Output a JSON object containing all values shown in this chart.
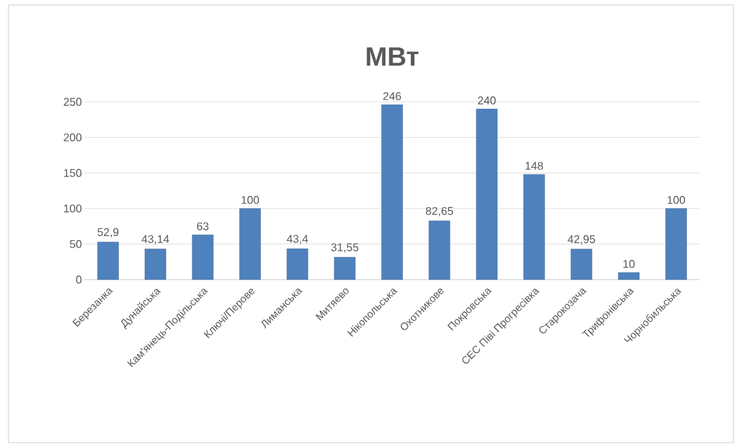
{
  "chart_data": {
    "type": "bar",
    "title": "МВт",
    "categories": [
      "Березанка",
      "Дунайська",
      "Кам'янець-Подільська",
      "Ключі/Перове",
      "Лиманська",
      "Митяево",
      "Нікопольська",
      "Охотникове",
      "Покровська",
      "СЕС Піві Прогресівка",
      "Старокозача",
      "Трифонівська",
      "Чорнобильська"
    ],
    "values": [
      52.9,
      43.14,
      63,
      100,
      43.4,
      31.55,
      246,
      82.65,
      240,
      148,
      42.95,
      10,
      100
    ],
    "value_labels": [
      "52,9",
      "43,14",
      "63",
      "100",
      "43,4",
      "31,55",
      "246",
      "82,65",
      "240",
      "148",
      "42,95",
      "10",
      "100"
    ],
    "color": "#4f81bd",
    "ylim": [
      0,
      250
    ],
    "yticks": [
      0,
      50,
      100,
      150,
      200,
      250
    ],
    "grid": "y"
  }
}
